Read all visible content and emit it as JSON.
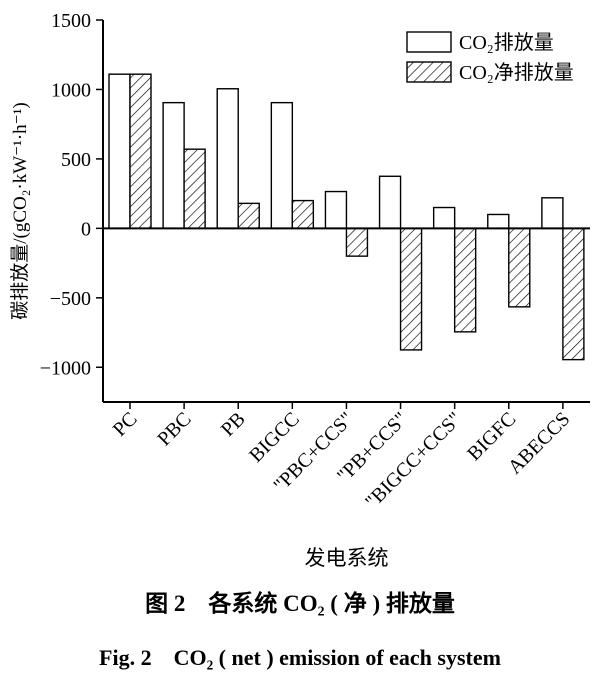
{
  "chart_data": {
    "type": "bar",
    "categories": [
      "PC",
      "PBC",
      "PB",
      "BIGCC",
      "\"PBC+CCS\"",
      "\"PB+CCS\"",
      "\"BIGCC+CCS\"",
      "BIGFC",
      "ABECCS"
    ],
    "series": [
      {
        "name": "CO₂排放量",
        "values": [
          1110,
          905,
          1005,
          905,
          265,
          375,
          150,
          100,
          220
        ]
      },
      {
        "name": "CO₂净排放量",
        "values": [
          1110,
          570,
          180,
          200,
          -200,
          -875,
          -745,
          -565,
          -945
        ]
      }
    ],
    "xlabel": "发电系统",
    "ylabel": "碳排放量/(gCO₂·kW⁻¹·h⁻¹)",
    "ylim": [
      -1250,
      1500
    ],
    "yticks": [
      1500,
      1000,
      500,
      0,
      -500,
      -1000
    ],
    "ytick_labels": [
      "1500",
      "1000",
      "500",
      "0",
      "−500",
      "−1000"
    ],
    "grid": false,
    "legend_position": "top-right",
    "series_styles": [
      "white fill",
      "diagonal hatch"
    ]
  },
  "captions": {
    "cn": "图 2　各系统 CO₂ ( 净 ) 排放量",
    "en": "Fig. 2　CO₂ ( net ) emission of each system"
  }
}
